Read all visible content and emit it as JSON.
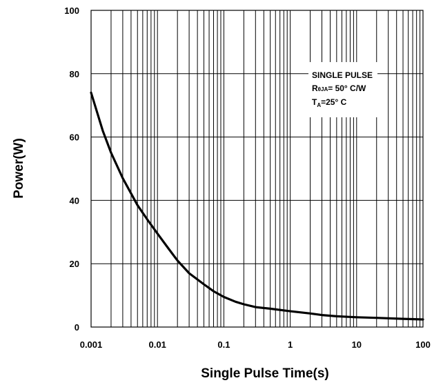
{
  "chart_data": {
    "type": "line",
    "title": "",
    "xlabel": "Single Pulse Time(s)",
    "ylabel": "Power(W)",
    "x_scale": "log",
    "xlim": [
      0.001,
      100
    ],
    "ylim": [
      0,
      100
    ],
    "x_tick_labels": [
      "0.001",
      "0.01",
      "0.1",
      "1",
      "10",
      "100"
    ],
    "y_tick_labels": [
      "0",
      "20",
      "40",
      "60",
      "80",
      "100"
    ],
    "grid": true,
    "series": [
      {
        "x": [
          0.001,
          0.0015,
          0.002,
          0.003,
          0.005,
          0.007,
          0.01,
          0.015,
          0.02,
          0.03,
          0.05,
          0.07,
          0.1,
          0.15,
          0.2,
          0.3,
          0.5,
          1,
          2,
          3,
          5,
          10,
          20,
          50,
          100
        ],
        "y": [
          74,
          62,
          55,
          47,
          38.5,
          34,
          29.5,
          24.5,
          21,
          17,
          13.5,
          11.3,
          9.5,
          8,
          7.2,
          6.3,
          5.8,
          5,
          4.3,
          3.8,
          3.4,
          3.1,
          2.9,
          2.6,
          2.4
        ],
        "color": "#000000"
      }
    ],
    "annotation": {
      "line1": "SINGLE PULSE",
      "line2_main": "R",
      "line2_sub": "θJA",
      "line2_rest": "= 50° C/W",
      "line3_main": "T",
      "line3_sub": "A",
      "line3_rest": "=25° C"
    }
  }
}
